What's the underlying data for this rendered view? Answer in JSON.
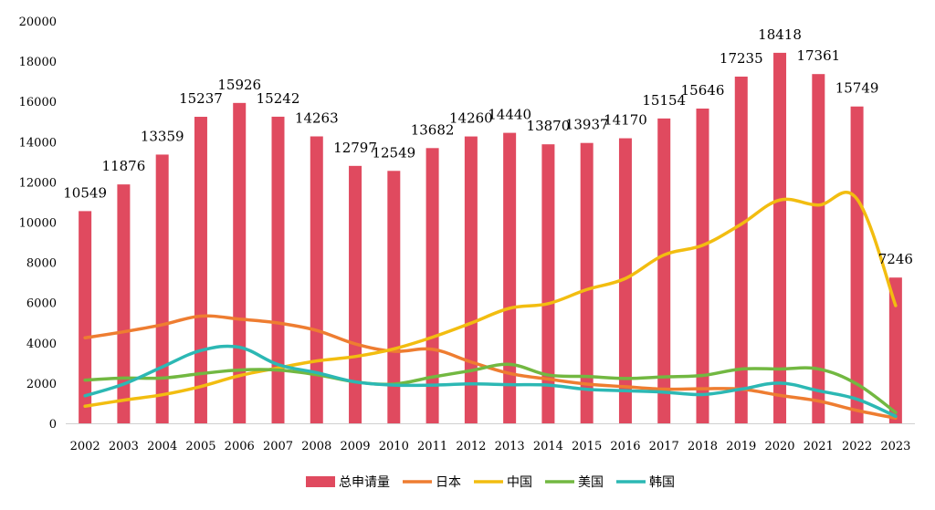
{
  "chart_data": {
    "type": "bar",
    "categories": [
      "2002",
      "2003",
      "2004",
      "2005",
      "2006",
      "2007",
      "2008",
      "2009",
      "2010",
      "2011",
      "2012",
      "2013",
      "2014",
      "2015",
      "2016",
      "2017",
      "2018",
      "2019",
      "2020",
      "2021",
      "2022",
      "2023"
    ],
    "ylim": [
      0,
      20000
    ],
    "yticks": [
      0,
      2000,
      4000,
      6000,
      8000,
      10000,
      12000,
      14000,
      16000,
      18000,
      20000
    ],
    "grid": false,
    "legend_position": "bottom",
    "bar_series": {
      "name": "总申请量",
      "color": "#e04a5f",
      "values": [
        10549,
        11876,
        13359,
        15237,
        15926,
        15242,
        14263,
        12797,
        12549,
        13682,
        14260,
        14440,
        13870,
        13937,
        14170,
        15154,
        15646,
        17235,
        18418,
        17361,
        15749,
        7246
      ],
      "labels": [
        "10549",
        "11876",
        "13359",
        "15237",
        "15926",
        "15242",
        "14263",
        "12797",
        "12549",
        "13682",
        "14260",
        "14440",
        "13870",
        "13937",
        "14170",
        "15154",
        "15646",
        "17235",
        "18418",
        "17361",
        "15749",
        "7246"
      ]
    },
    "line_series": [
      {
        "name": "日本",
        "color": "#ee7d31",
        "values": [
          4250,
          4550,
          4900,
          5330,
          5180,
          4990,
          4620,
          3950,
          3580,
          3680,
          3050,
          2480,
          2200,
          1950,
          1820,
          1700,
          1720,
          1700,
          1390,
          1110,
          640,
          260
        ]
      },
      {
        "name": "中国",
        "color": "#f2bd10",
        "values": [
          850,
          1150,
          1420,
          1830,
          2370,
          2750,
          3100,
          3320,
          3700,
          4280,
          4980,
          5720,
          5950,
          6650,
          7200,
          8370,
          8850,
          9900,
          11100,
          10850,
          11150,
          5850
        ]
      },
      {
        "name": "美国",
        "color": "#72b841",
        "values": [
          2150,
          2250,
          2250,
          2470,
          2650,
          2650,
          2420,
          2060,
          1950,
          2300,
          2620,
          2930,
          2400,
          2330,
          2230,
          2310,
          2380,
          2700,
          2700,
          2700,
          1950,
          540
        ]
      },
      {
        "name": "韩国",
        "color": "#2cb8b4",
        "values": [
          1370,
          1950,
          2800,
          3620,
          3780,
          2920,
          2520,
          2060,
          1900,
          1900,
          1960,
          1920,
          1900,
          1690,
          1620,
          1550,
          1430,
          1700,
          2000,
          1620,
          1200,
          350
        ]
      }
    ]
  }
}
